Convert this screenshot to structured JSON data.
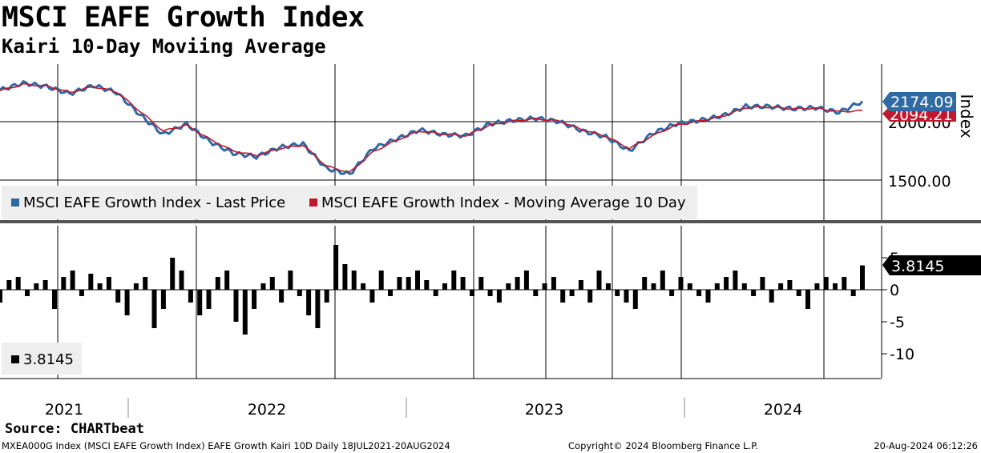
{
  "title": "MSCI EAFE Growth Index",
  "subtitle": "Kairi 10-Day Moviing Average",
  "source": "Source: CHARTbeat",
  "footer": {
    "left": "MXEA000G Index (MSCI EAFE Growth Index) EAFE Growth Kairi 10D  Daily 18JUL2021-20AUG2024",
    "middle": "Copyright© 2024 Bloomberg Finance L.P.",
    "right": "20-Aug-2024 06:12:26"
  },
  "colors": {
    "price": "#2e6aa3",
    "ma": "#c0192f",
    "kairi": "#000000",
    "grid": "#000000"
  },
  "chart_data": [
    {
      "type": "line",
      "ylabel": "Index",
      "ylim": [
        1000,
        2600
      ],
      "yticks": [
        "2000.00",
        "1500.00"
      ],
      "x_years": [
        "2021",
        "2022",
        "2023",
        "2024"
      ],
      "legend": [
        "MSCI EAFE Growth Index - Last Price",
        "MSCI EAFE Growth Index - Moving Average 10 Day"
      ],
      "last_price_label": "2174.09",
      "ma_label": "2094.21",
      "series": [
        {
          "name": "MSCI EAFE Growth Index - Last Price",
          "x": [
            "2021-07",
            "2021-08",
            "2021-09",
            "2021-10",
            "2021-11",
            "2021-12",
            "2022-01",
            "2022-02",
            "2022-03",
            "2022-04",
            "2022-05",
            "2022-06",
            "2022-07",
            "2022-08",
            "2022-09",
            "2022-10",
            "2022-11",
            "2022-12",
            "2023-01",
            "2023-02",
            "2023-03",
            "2023-04",
            "2023-05",
            "2023-06",
            "2023-07",
            "2023-08",
            "2023-09",
            "2023-10",
            "2023-11",
            "2023-12",
            "2024-01",
            "2024-02",
            "2024-03",
            "2024-04",
            "2024-05",
            "2024-06",
            "2024-07",
            "2024-08"
          ],
          "values": [
            2270,
            2330,
            2300,
            2240,
            2310,
            2250,
            2060,
            1890,
            1980,
            1830,
            1730,
            1700,
            1780,
            1810,
            1600,
            1550,
            1770,
            1850,
            1930,
            1890,
            1880,
            1980,
            2010,
            2030,
            2000,
            1920,
            1870,
            1750,
            1900,
            1980,
            2010,
            2050,
            2130,
            2130,
            2110,
            2120,
            2080,
            2174
          ]
        },
        {
          "name": "MSCI EAFE Growth Index - Moving Average 10 Day",
          "x": [
            "2021-07",
            "2021-08",
            "2021-09",
            "2021-10",
            "2021-11",
            "2021-12",
            "2022-01",
            "2022-02",
            "2022-03",
            "2022-04",
            "2022-05",
            "2022-06",
            "2022-07",
            "2022-08",
            "2022-09",
            "2022-10",
            "2022-11",
            "2022-12",
            "2023-01",
            "2023-02",
            "2023-03",
            "2023-04",
            "2023-05",
            "2023-06",
            "2023-07",
            "2023-08",
            "2023-09",
            "2023-10",
            "2023-11",
            "2023-12",
            "2024-01",
            "2024-02",
            "2024-03",
            "2024-04",
            "2024-05",
            "2024-06",
            "2024-07",
            "2024-08"
          ],
          "values": [
            2265,
            2320,
            2305,
            2250,
            2300,
            2255,
            2090,
            1920,
            1970,
            1850,
            1750,
            1710,
            1770,
            1800,
            1620,
            1565,
            1740,
            1840,
            1920,
            1895,
            1880,
            1970,
            2005,
            2025,
            2005,
            1930,
            1875,
            1770,
            1880,
            1970,
            2005,
            2045,
            2120,
            2125,
            2110,
            2115,
            2085,
            2094
          ]
        }
      ]
    },
    {
      "type": "bar",
      "name": "Kairi 10D",
      "ylim": [
        -13,
        9
      ],
      "yticks": [
        "5",
        "0",
        "-5",
        "-10"
      ],
      "last_value_label": "3.8145",
      "legend": [
        "3.8145"
      ],
      "values": [
        -2,
        1.5,
        2,
        -1,
        1,
        1.5,
        -3,
        2,
        3,
        -1,
        2.5,
        1,
        2,
        -2,
        -4,
        1,
        2,
        -6,
        -3,
        5,
        3,
        -2,
        -4,
        -3,
        2,
        3,
        -5,
        -7,
        -3,
        1,
        2,
        -2,
        3,
        -1,
        -4,
        -6,
        -2,
        7,
        4,
        3,
        1,
        -2,
        3,
        -1,
        2,
        2,
        3,
        1.5,
        -1,
        1,
        3,
        2,
        -1,
        2,
        -1,
        -2,
        1,
        2,
        3,
        -1,
        1,
        2,
        -2,
        -1,
        1.5,
        -2,
        3,
        1,
        -1,
        -2,
        -3,
        2,
        1,
        3,
        -1,
        2,
        1,
        -1,
        -2,
        1,
        2,
        3,
        1,
        -1,
        2,
        -2,
        1,
        1.5,
        -1,
        -3,
        1,
        2,
        1,
        2,
        -1,
        3.8
      ]
    }
  ]
}
